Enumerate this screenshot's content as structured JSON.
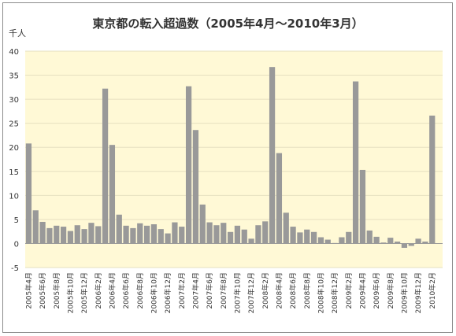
{
  "chart_data": {
    "type": "bar",
    "title": "東京都の転入超過数（2005年4月～2010年3月）",
    "ylabel": "千人",
    "xlabel": "",
    "ylim": [
      -5,
      40
    ],
    "yticks": [
      40,
      35,
      30,
      25,
      20,
      15,
      10,
      5,
      0,
      -5
    ],
    "grid": true,
    "legend": "none",
    "colors": {
      "bar": "#999999",
      "plot_bg": "#fff9d6",
      "grid": "#e6e0c0"
    },
    "categories": [
      "2005年4月",
      "2005年5月",
      "2005年6月",
      "2005年7月",
      "2005年8月",
      "2005年9月",
      "2005年10月",
      "2005年11月",
      "2005年12月",
      "2006年1月",
      "2006年2月",
      "2006年3月",
      "2006年4月",
      "2006年5月",
      "2006年6月",
      "2006年7月",
      "2006年8月",
      "2006年9月",
      "2006年10月",
      "2006年11月",
      "2006年12月",
      "2007年1月",
      "2007年2月",
      "2007年3月",
      "2007年4月",
      "2007年5月",
      "2007年6月",
      "2007年7月",
      "2007年8月",
      "2007年9月",
      "2007年10月",
      "2007年11月",
      "2007年12月",
      "2008年1月",
      "2008年2月",
      "2008年3月",
      "2008年4月",
      "2008年5月",
      "2008年6月",
      "2008年7月",
      "2008年8月",
      "2008年9月",
      "2008年10月",
      "2008年11月",
      "2008年12月",
      "2009年1月",
      "2009年2月",
      "2009年3月",
      "2009年4月",
      "2009年5月",
      "2009年6月",
      "2009年7月",
      "2009年8月",
      "2009年9月",
      "2009年10月",
      "2009年11月",
      "2009年12月",
      "2010年1月",
      "2010年2月",
      "2010年3月"
    ],
    "values": [
      20.8,
      6.9,
      4.5,
      3.2,
      3.7,
      3.5,
      2.6,
      3.8,
      3.0,
      4.3,
      3.6,
      32.2,
      20.5,
      6.0,
      3.7,
      3.2,
      4.2,
      3.7,
      4.0,
      3.0,
      2.1,
      4.4,
      3.5,
      32.7,
      23.6,
      8.1,
      4.4,
      3.8,
      4.3,
      2.4,
      3.7,
      2.9,
      1.0,
      3.8,
      4.6,
      36.7,
      18.8,
      6.4,
      3.5,
      2.3,
      2.9,
      2.4,
      1.3,
      0.8,
      0.1,
      1.3,
      2.4,
      33.7,
      15.3,
      2.7,
      1.4,
      0.2,
      1.2,
      0.4,
      -0.9,
      -0.5,
      1.0,
      0.4,
      26.6,
      0
    ],
    "tick_labels": [
      "2005年4月",
      "2005年6月",
      "2005年8月",
      "2005年10月",
      "2005年12月",
      "2006年2月",
      "2006年4月",
      "2006年6月",
      "2006年8月",
      "2006年10月",
      "2006年12月",
      "2007年2月",
      "2007年4月",
      "2007年6月",
      "2007年8月",
      "2007年10月",
      "2007年12月",
      "2008年2月",
      "2008年4月",
      "2008年6月",
      "2008年8月",
      "2008年10月",
      "2008年12月",
      "2009年2月",
      "2009年4月",
      "2009年6月",
      "2009年8月",
      "2009年10月",
      "2009年12月",
      "2010年2月"
    ]
  }
}
